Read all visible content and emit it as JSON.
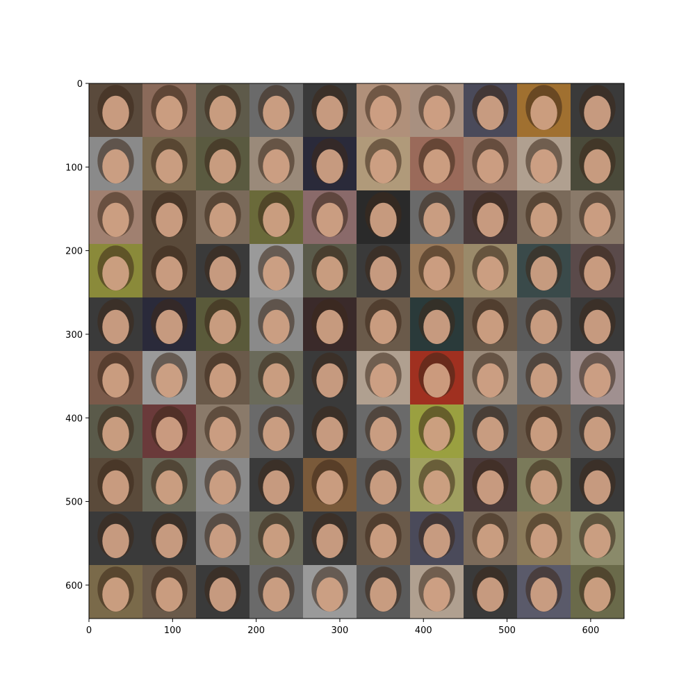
{
  "figure": {
    "type": "image-grid",
    "description_label": "grid of generated face images",
    "grid": {
      "rows": 10,
      "cols": 10,
      "tile_size_data_units": 64
    },
    "x_axis": {
      "range": [
        0,
        640
      ],
      "ticks": [
        0,
        100,
        200,
        300,
        400,
        500,
        600
      ],
      "tick_labels": [
        "0",
        "100",
        "200",
        "300",
        "400",
        "500",
        "600"
      ]
    },
    "y_axis": {
      "range": [
        0,
        640
      ],
      "inverted": true,
      "ticks": [
        0,
        100,
        200,
        300,
        400,
        500,
        600
      ],
      "tick_labels": [
        "0",
        "100",
        "200",
        "300",
        "400",
        "500",
        "600"
      ]
    },
    "tiles": [
      [
        "#5a4a3c",
        "#8a6a5a",
        "#5e5a4a",
        "#6a6a6a",
        "#3a3a3a",
        "#b0907a",
        "#a89080",
        "#4a4a5a",
        "#a07030",
        "#3a3a3a"
      ],
      [
        "#8a8a8a",
        "#7a6a50",
        "#5a5a40",
        "#9a8a7a",
        "#2a2a3a",
        "#b09a7a",
        "#9a6a5a",
        "#9a7a6a",
        "#b0a090",
        "#4a4a3a"
      ],
      [
        "#a08070",
        "#5a4a3a",
        "#7a6a5a",
        "#6a6a3a",
        "#8a6a6a",
        "#2a2a2a",
        "#6a6a6a",
        "#4a3a3a",
        "#7a6a5a",
        "#8a7a6a"
      ],
      [
        "#8a8a3a",
        "#5a4a3a",
        "#3a3a3a",
        "#9a9a9a",
        "#5a5a4a",
        "#3a3a3a",
        "#9a7a5a",
        "#9a8a6a",
        "#3a4a4a",
        "#5a4a4a"
      ],
      [
        "#3a3a3a",
        "#2a2a3a",
        "#5a5a3a",
        "#8a8a8a",
        "#3a2a2a",
        "#6a5a4a",
        "#2a3a3a",
        "#6a5a4a",
        "#5a5a5a",
        "#3a3a3a"
      ],
      [
        "#7a5a4a",
        "#9a9a9a",
        "#6a5a4a",
        "#6a6a5a",
        "#3a3a3a",
        "#b0a090",
        "#a03020",
        "#9a8a7a",
        "#6a6a6a",
        "#a09090"
      ],
      [
        "#5a5a4a",
        "#6a3a3a",
        "#8a7a6a",
        "#6a6a6a",
        "#3a3a3a",
        "#6a6a6a",
        "#9aa040",
        "#5a5a5a",
        "#6a5a4a",
        "#5a5a5a"
      ],
      [
        "#5a4a3a",
        "#6a6a5a",
        "#8a8a8a",
        "#3a3a3a",
        "#7a5a3a",
        "#5a5a5a",
        "#a0a060",
        "#4a3a3a",
        "#7a7a5a",
        "#3a3a3a"
      ],
      [
        "#3a3a3a",
        "#3a3a3a",
        "#7a7a7a",
        "#6a6a5a",
        "#3a3a3a",
        "#6a5a4a",
        "#4a4a5a",
        "#7a6a5a",
        "#8a7a5a",
        "#8a8a6a"
      ],
      [
        "#7a6a4a",
        "#6a5a4a",
        "#3a3a3a",
        "#6a6a6a",
        "#9a9a9a",
        "#5a5a5a",
        "#b0a090",
        "#3a3a3a",
        "#5a5a6a",
        "#6a6a4a"
      ]
    ]
  }
}
